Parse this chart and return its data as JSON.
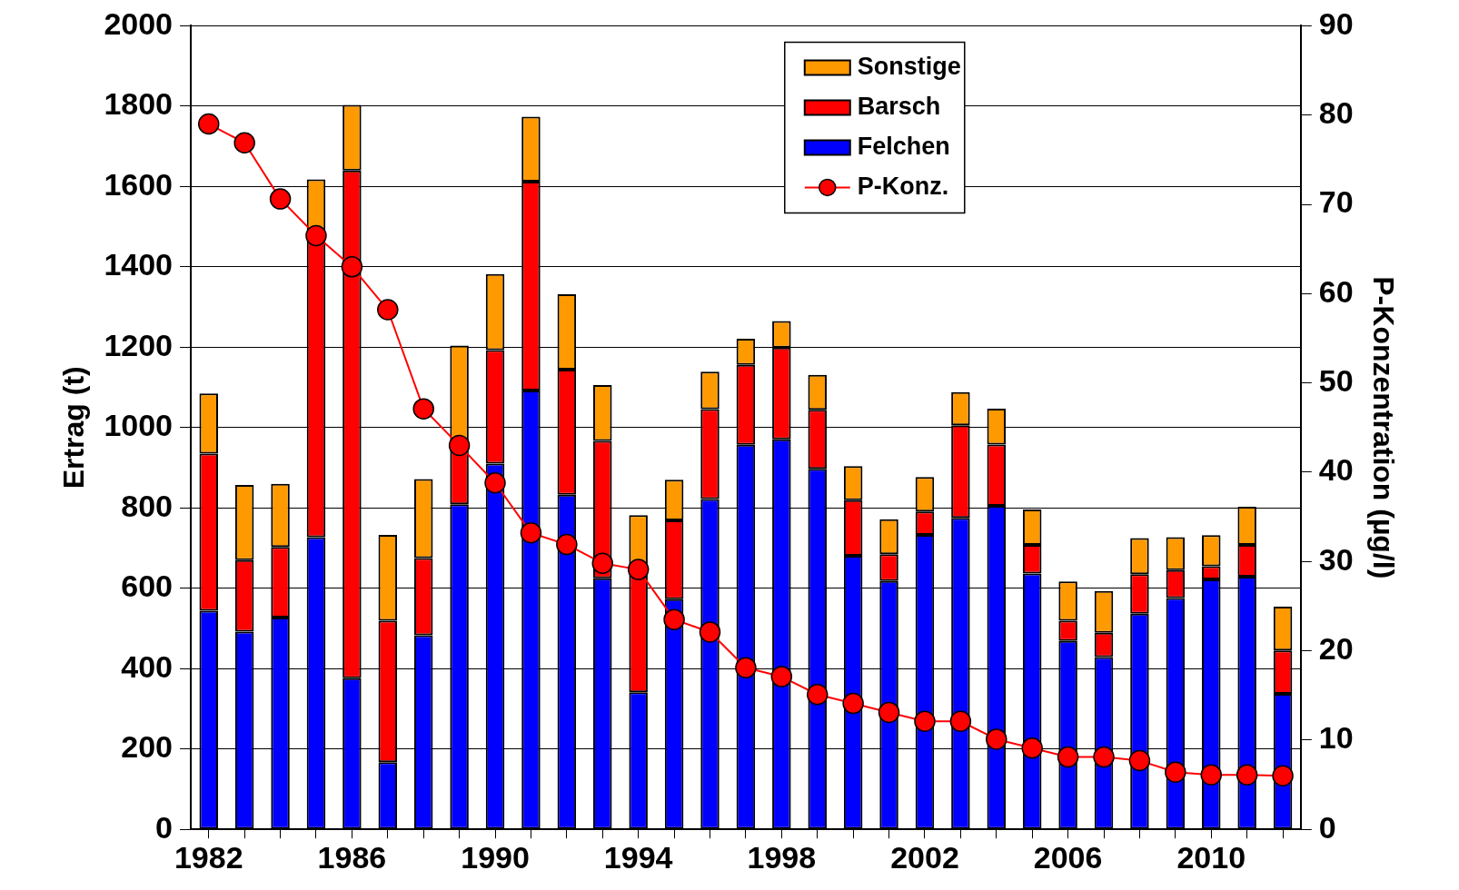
{
  "chart_data": {
    "type": "bar",
    "stacked": true,
    "categories": [
      "1982",
      null,
      null,
      null,
      "1986",
      null,
      null,
      null,
      "1990",
      null,
      null,
      null,
      "1994",
      null,
      null,
      null,
      "1998",
      null,
      null,
      null,
      "2002",
      null,
      null,
      null,
      "2006",
      null,
      null,
      null,
      "2010",
      null,
      null
    ],
    "series": [
      {
        "name": "Felchen",
        "color": "#0000ff",
        "values": [
          544,
          492,
          527,
          727,
          376,
          167,
          483,
          809,
          910,
          1092,
          833,
          625,
          341,
          573,
          822,
          957,
          971,
          897,
          681,
          618,
          733,
          775,
          805,
          637,
          469,
          429,
          537,
          576,
          622,
          629,
          337
        ]
      },
      {
        "name": "Barsch",
        "color": "#ff0000",
        "values": [
          391,
          178,
          176,
          753,
          1264,
          352,
          192,
          151,
          283,
          520,
          311,
          342,
          309,
          196,
          224,
          199,
          228,
          147,
          138,
          67,
          58,
          231,
          153,
          71,
          50,
          60,
          98,
          69,
          33,
          79,
          108
        ]
      },
      {
        "name": "Sonstige",
        "color": "#ff9900",
        "values": [
          150,
          187,
          157,
          138,
          163,
          214,
          197,
          244,
          189,
          162,
          188,
          139,
          132,
          101,
          93,
          65,
          66,
          87,
          85,
          87,
          86,
          82,
          89,
          88,
          98,
          104,
          90,
          82,
          77,
          95,
          109
        ]
      },
      {
        "name": "P-Konz.",
        "type": "line",
        "axis": "y2",
        "color": "#ff0000",
        "marker": "circle",
        "values": [
          79,
          76.9,
          70.6,
          66.5,
          63,
          58.2,
          47.1,
          43,
          38.8,
          33.2,
          31.9,
          29.8,
          29.1,
          23.5,
          22.1,
          18.1,
          17.1,
          15.1,
          14.1,
          13.1,
          12.1,
          12.1,
          10.1,
          9.1,
          8.1,
          8.1,
          7.7,
          6.4,
          6.1,
          6.1,
          6
        ]
      }
    ],
    "ylabel": "Ertrag (t)",
    "y2label": "P-Konzentration (µg/l)",
    "ylim": [
      0,
      2000
    ],
    "yticks": [
      0,
      200,
      400,
      600,
      800,
      1000,
      1200,
      1400,
      1600,
      1800,
      2000
    ],
    "y2lim": [
      0,
      90
    ],
    "y2ticks": [
      0,
      10,
      20,
      30,
      40,
      50,
      60,
      70,
      80,
      90
    ],
    "grid": "y",
    "legend": "top right"
  }
}
